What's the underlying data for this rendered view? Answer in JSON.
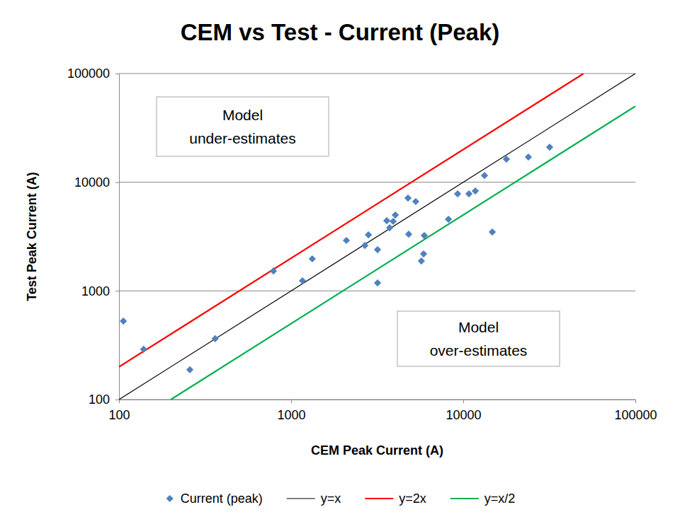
{
  "chart_data": {
    "type": "scatter",
    "title": "CEM vs Test - Current (Peak)",
    "x_label": "CEM Peak Current (A)",
    "y_label": "Test Peak Current (A)",
    "log": true,
    "grid": true,
    "legend": "bottom",
    "xlim": [
      100,
      100000
    ],
    "ylim": [
      100,
      100000
    ],
    "xticks": [
      100,
      1000,
      10000,
      100000
    ],
    "yticks": [
      100,
      1000,
      10000,
      100000
    ],
    "annotations": [
      [
        "Model",
        "under-estimates"
      ],
      [
        "Model",
        "over-estimates"
      ]
    ],
    "series": [
      {
        "name": "Current (peak)",
        "type": "scatter",
        "marker": "diamond",
        "color": "#4f81bd",
        "x": [
          106,
          139,
          258,
          362,
          789,
          1164,
          1327,
          2094,
          2680,
          2812,
          3178,
          3178,
          3594,
          3736,
          3917,
          4030,
          4777,
          4820,
          5296,
          5710,
          5884,
          5939,
          8204,
          9275,
          10790,
          11750,
          13290,
          14750,
          17810,
          23900,
          31770
        ],
        "values": [
          527,
          290,
          188,
          363,
          1526,
          1240,
          1972,
          2912,
          2617,
          3281,
          2393,
          1183,
          4426,
          3811,
          4365,
          4989,
          7150,
          3325,
          6640,
          1885,
          2188,
          3230,
          4557,
          7820,
          7820,
          8300,
          11530,
          3484,
          16300,
          17050,
          21030
        ]
      },
      {
        "name": "y=x",
        "type": "line",
        "line_style": "solid",
        "color": "#000000",
        "x": [
          100,
          100000
        ],
        "values": [
          100,
          100000
        ]
      },
      {
        "name": "y=2x",
        "type": "line",
        "line_style": "solid",
        "color": "#ff0000",
        "x": [
          100,
          50000
        ],
        "values": [
          200,
          100000
        ]
      },
      {
        "name": "y=x/2",
        "type": "line",
        "line_style": "solid",
        "color": "#00b050",
        "x": [
          200,
          100000
        ],
        "values": [
          100,
          50000
        ]
      }
    ]
  }
}
